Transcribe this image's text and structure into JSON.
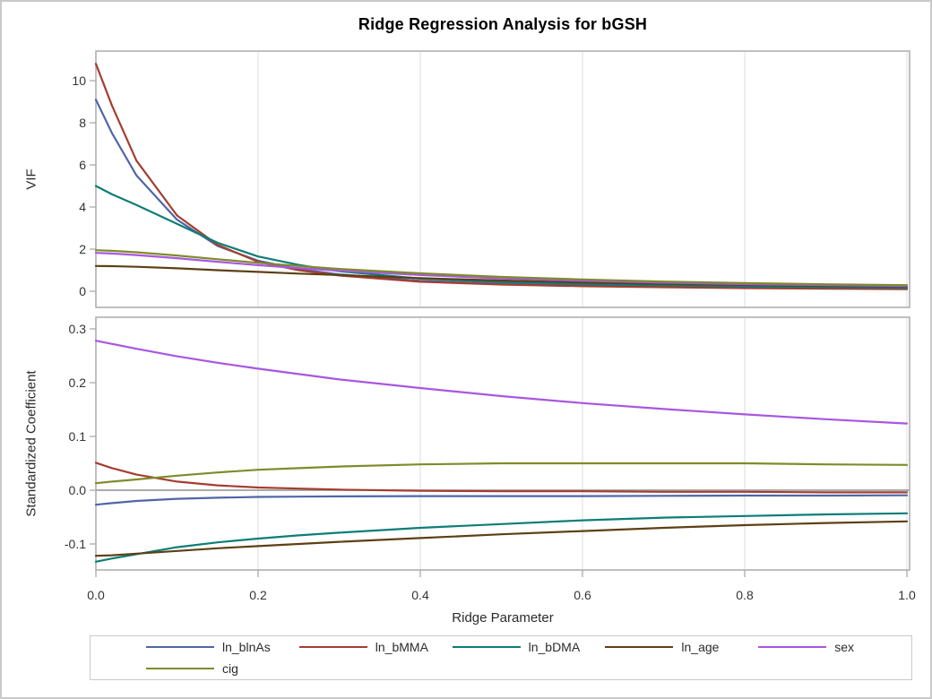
{
  "title": "Ridge Regression Analysis for bGSH",
  "xaxis": {
    "label": "Ridge Parameter",
    "range": [
      0,
      1
    ],
    "ticks": [
      0.0,
      0.2,
      0.4,
      0.6,
      0.8,
      1.0
    ],
    "tick_labels": [
      "0.0",
      "0.2",
      "0.4",
      "0.6",
      "0.8",
      "1.0"
    ]
  },
  "colors": {
    "ln_blnAs": "#4F66A8",
    "ln_bMMA": "#A43E30",
    "ln_bDMA": "#0C7E76",
    "ln_age": "#5D4015",
    "sex": "#A857E0",
    "cig": "#7F8B2A",
    "grid": "#e6e6e6",
    "wall_border": "#ababab",
    "tick_mark": "#ababab",
    "zero_refline": "#8f8f8f"
  },
  "chart_data": [
    {
      "type": "line",
      "panel": "vif",
      "ylabel": "VIF",
      "ylim": [
        -0.77,
        11.4
      ],
      "yticks": [
        0,
        2,
        4,
        6,
        8,
        10
      ],
      "ytick_labels": [
        "0",
        "2",
        "4",
        "6",
        "8",
        "10"
      ],
      "grid": "vertical",
      "legend_position": "bottom-shared",
      "x": [
        0,
        0.02,
        0.05,
        0.1,
        0.15,
        0.2,
        0.25,
        0.3,
        0.4,
        0.5,
        0.6,
        0.7,
        0.8,
        0.9,
        1.0
      ],
      "series": [
        {
          "name": "ln_blnAs",
          "color": "#4F66A8",
          "values": [
            9.1,
            7.5,
            5.5,
            3.4,
            2.15,
            1.45,
            1.05,
            0.8,
            0.5,
            0.36,
            0.28,
            0.22,
            0.18,
            0.15,
            0.13
          ]
        },
        {
          "name": "ln_bMMA",
          "color": "#A43E30",
          "values": [
            10.8,
            8.8,
            6.2,
            3.6,
            2.2,
            1.4,
            1.0,
            0.75,
            0.45,
            0.32,
            0.24,
            0.19,
            0.15,
            0.12,
            0.1
          ]
        },
        {
          "name": "ln_bDMA",
          "color": "#0C7E76",
          "values": [
            5.0,
            4.6,
            4.1,
            3.2,
            2.3,
            1.65,
            1.25,
            0.95,
            0.6,
            0.44,
            0.34,
            0.28,
            0.23,
            0.19,
            0.16
          ]
        },
        {
          "name": "ln_age",
          "color": "#5D4015",
          "values": [
            1.2,
            1.19,
            1.16,
            1.09,
            1.0,
            0.92,
            0.84,
            0.77,
            0.62,
            0.51,
            0.42,
            0.35,
            0.3,
            0.25,
            0.22
          ]
        },
        {
          "name": "sex",
          "color": "#A857E0",
          "values": [
            1.82,
            1.79,
            1.72,
            1.57,
            1.4,
            1.24,
            1.1,
            0.97,
            0.77,
            0.61,
            0.5,
            0.41,
            0.34,
            0.29,
            0.25
          ]
        },
        {
          "name": "cig",
          "color": "#7F8B2A",
          "values": [
            1.95,
            1.92,
            1.85,
            1.7,
            1.52,
            1.35,
            1.2,
            1.06,
            0.85,
            0.68,
            0.56,
            0.46,
            0.39,
            0.33,
            0.29
          ]
        }
      ]
    },
    {
      "type": "line",
      "panel": "coefficients",
      "ylabel": "Standardized Coefficient",
      "ylim": [
        -0.148,
        0.322
      ],
      "yticks": [
        -0.1,
        0.0,
        0.1,
        0.2,
        0.3
      ],
      "ytick_labels": [
        "-0.1",
        "0.0",
        "0.1",
        "0.2",
        "0.3"
      ],
      "grid": "vertical",
      "refline_y": 0,
      "x": [
        0,
        0.02,
        0.05,
        0.1,
        0.15,
        0.2,
        0.25,
        0.3,
        0.4,
        0.5,
        0.6,
        0.7,
        0.8,
        0.9,
        1.0
      ],
      "series": [
        {
          "name": "ln_blnAs",
          "color": "#4F66A8",
          "values": [
            -0.027,
            -0.024,
            -0.02,
            -0.016,
            -0.014,
            -0.0125,
            -0.012,
            -0.0115,
            -0.011,
            -0.011,
            -0.011,
            -0.0105,
            -0.01,
            -0.01,
            -0.0095
          ]
        },
        {
          "name": "ln_bMMA",
          "color": "#A43E30",
          "values": [
            0.051,
            0.041,
            0.029,
            0.016,
            0.009,
            0.005,
            0.003,
            0.001,
            -0.001,
            -0.002,
            -0.002,
            -0.003,
            -0.003,
            -0.004,
            -0.004
          ]
        },
        {
          "name": "ln_bDMA",
          "color": "#0C7E76",
          "values": [
            -0.133,
            -0.127,
            -0.119,
            -0.106,
            -0.097,
            -0.09,
            -0.084,
            -0.079,
            -0.07,
            -0.063,
            -0.056,
            -0.051,
            -0.048,
            -0.045,
            -0.043
          ]
        },
        {
          "name": "ln_age",
          "color": "#5D4015",
          "values": [
            -0.122,
            -0.121,
            -0.118,
            -0.113,
            -0.108,
            -0.104,
            -0.1,
            -0.096,
            -0.089,
            -0.082,
            -0.076,
            -0.07,
            -0.065,
            -0.061,
            -0.058
          ]
        },
        {
          "name": "sex",
          "color": "#A857E0",
          "values": [
            0.278,
            0.272,
            0.263,
            0.249,
            0.237,
            0.226,
            0.216,
            0.206,
            0.19,
            0.175,
            0.162,
            0.151,
            0.141,
            0.132,
            0.124
          ]
        },
        {
          "name": "cig",
          "color": "#7F8B2A",
          "values": [
            0.013,
            0.016,
            0.02,
            0.027,
            0.033,
            0.038,
            0.041,
            0.044,
            0.048,
            0.05,
            0.05,
            0.05,
            0.05,
            0.048,
            0.047
          ]
        }
      ]
    }
  ],
  "legend": {
    "rows": [
      [
        "ln_blnAs",
        "ln_bMMA",
        "ln_bDMA",
        "ln_age",
        "sex"
      ],
      [
        "cig"
      ]
    ]
  }
}
